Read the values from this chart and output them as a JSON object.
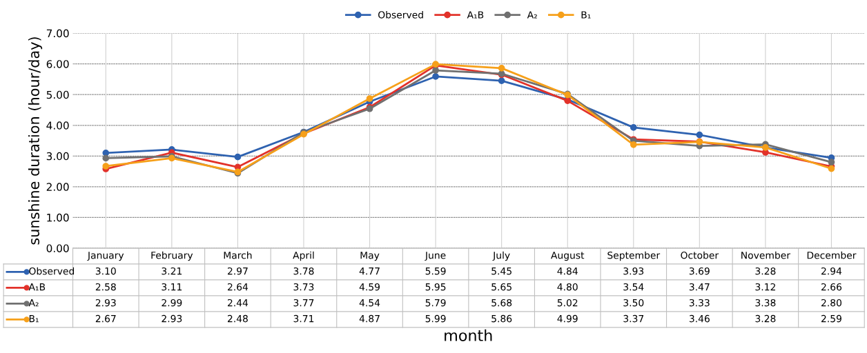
{
  "chart_data": {
    "type": "line",
    "xlabel": "month",
    "ylabel": "sunshine duration (hour/day)",
    "categories": [
      "January",
      "February",
      "March",
      "April",
      "May",
      "June",
      "July",
      "August",
      "September",
      "October",
      "November",
      "December"
    ],
    "series": [
      {
        "name": "Observed",
        "color": "#2e62b0",
        "values": [
          3.1,
          3.21,
          2.97,
          3.78,
          4.77,
          5.59,
          5.45,
          4.84,
          3.93,
          3.69,
          3.28,
          2.94
        ],
        "value_labels": [
          "3.10",
          "3.21",
          "2.97",
          "3.78",
          "4.77",
          "5.59",
          "5.45",
          "4.84",
          "3.93",
          "3.69",
          "3.28",
          "2.94"
        ]
      },
      {
        "name": "A₁B",
        "color": "#e2322a",
        "values": [
          2.58,
          3.11,
          2.64,
          3.73,
          4.59,
          5.95,
          5.65,
          4.8,
          3.54,
          3.47,
          3.12,
          2.66
        ],
        "value_labels": [
          "2.58",
          "3.11",
          "2.64",
          "3.73",
          "4.59",
          "5.95",
          "5.65",
          "4.80",
          "3.54",
          "3.47",
          "3.12",
          "2.66"
        ]
      },
      {
        "name": "A₂",
        "color": "#707070",
        "values": [
          2.93,
          2.99,
          2.44,
          3.77,
          4.54,
          5.79,
          5.68,
          5.02,
          3.5,
          3.33,
          3.38,
          2.8
        ],
        "value_labels": [
          "2.93",
          "2.99",
          "2.44",
          "3.77",
          "4.54",
          "5.79",
          "5.68",
          "5.02",
          "3.50",
          "3.33",
          "3.38",
          "2.80"
        ]
      },
      {
        "name": "B₁",
        "color": "#f6a01a",
        "values": [
          2.67,
          2.93,
          2.48,
          3.71,
          4.87,
          5.99,
          5.86,
          4.99,
          3.37,
          3.46,
          3.28,
          2.59
        ],
        "value_labels": [
          "2.67",
          "2.93",
          "2.48",
          "3.71",
          "4.87",
          "5.99",
          "5.86",
          "4.99",
          "3.37",
          "3.46",
          "3.28",
          "2.59"
        ]
      }
    ],
    "ylim": [
      0,
      7
    ],
    "yticks": [
      {
        "value": 0,
        "label": "0.00"
      },
      {
        "value": 1,
        "label": "1.00"
      },
      {
        "value": 2,
        "label": "2.00"
      },
      {
        "value": 3,
        "label": "3.00"
      },
      {
        "value": 4,
        "label": "4.00"
      },
      {
        "value": 5,
        "label": "5.00"
      },
      {
        "value": 6,
        "label": "6.00"
      },
      {
        "value": 7,
        "label": "7.00"
      }
    ],
    "grid": true,
    "legend": "top",
    "marker": "circle",
    "line_style": "solid"
  }
}
